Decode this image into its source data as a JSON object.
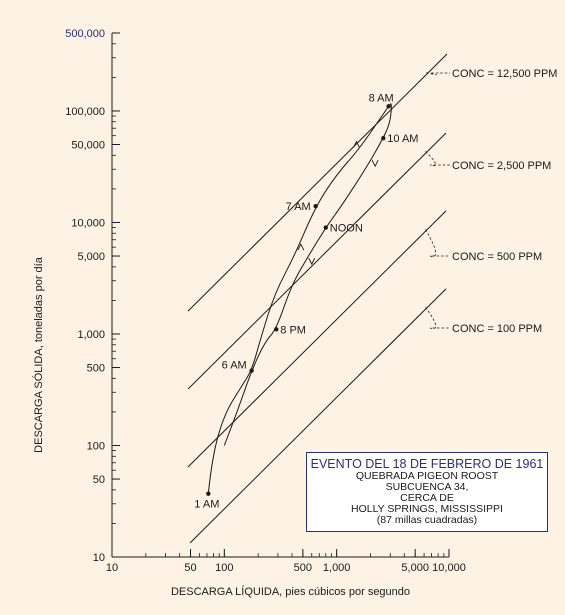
{
  "chart_data": {
    "type": "scatter",
    "xlabel": "DESCARGA LÍQUIDA, pies cúbicos por segundo",
    "ylabel": "DESCARGA SÓLIDA, toneladas por día",
    "xscale": "log",
    "yscale": "log",
    "xlim": [
      10,
      10000
    ],
    "ylim": [
      10,
      500000
    ],
    "xticks": [
      {
        "value": 10,
        "label": "10"
      },
      {
        "value": 50,
        "label": "50"
      },
      {
        "value": 100,
        "label": "100"
      },
      {
        "value": 500,
        "label": "500"
      },
      {
        "value": 1000,
        "label": "1,000"
      },
      {
        "value": 5000,
        "label": "5,000"
      },
      {
        "value": 10000,
        "label": "10,000"
      }
    ],
    "yticks": [
      {
        "value": 10,
        "label": "10"
      },
      {
        "value": 50,
        "label": "50"
      },
      {
        "value": 100,
        "label": "100"
      },
      {
        "value": 500,
        "label": "500"
      },
      {
        "value": 1000,
        "label": "1,000"
      },
      {
        "value": 5000,
        "label": "5,000"
      },
      {
        "value": 10000,
        "label": "10,000"
      },
      {
        "value": 50000,
        "label": "50,000"
      },
      {
        "value": 100000,
        "label": "100,000"
      },
      {
        "value": 500000,
        "label": "500,000"
      }
    ],
    "points": [
      {
        "label": "1 AM",
        "x": 72,
        "y": 37
      },
      {
        "label": "6 AM",
        "x": 175,
        "y": 470
      },
      {
        "label": "8 PM",
        "x": 290,
        "y": 1100
      },
      {
        "label": "7 AM",
        "x": 650,
        "y": 14000
      },
      {
        "label": "NOON",
        "x": 800,
        "y": 9000
      },
      {
        "label": "10 AM",
        "x": 2600,
        "y": 57000
      },
      {
        "label": "8 AM",
        "x": 2900,
        "y": 110000
      }
    ],
    "loop_path": [
      [
        72,
        37
      ],
      [
        78,
        80
      ],
      [
        100,
        190
      ],
      [
        140,
        330
      ],
      [
        175,
        470
      ],
      [
        210,
        900
      ],
      [
        280,
        2300
      ],
      [
        420,
        5000
      ],
      [
        650,
        14000
      ],
      [
        1000,
        27000
      ],
      [
        1600,
        46000
      ],
      [
        2900,
        110000
      ],
      [
        3100,
        120000
      ],
      [
        3000,
        80000
      ],
      [
        2600,
        57000
      ],
      [
        1800,
        30000
      ],
      [
        1100,
        14000
      ],
      [
        800,
        9000
      ],
      [
        560,
        5000
      ],
      [
        400,
        2800
      ],
      [
        290,
        1100
      ],
      [
        230,
        850
      ],
      [
        175,
        470
      ],
      [
        130,
        200
      ],
      [
        100,
        100
      ]
    ],
    "arrows": [
      {
        "x": 1500,
        "y": 50000,
        "dir": "up"
      },
      {
        "x": 480,
        "y": 6000,
        "dir": "up"
      },
      {
        "x": 2200,
        "y": 34000,
        "dir": "down"
      },
      {
        "x": 600,
        "y": 4500,
        "dir": "down"
      }
    ],
    "concentration_lines": [
      {
        "label": "CONC = 12,500 PPM",
        "coef": 33.75
      },
      {
        "label": "CONC = 2,500 PPM",
        "coef": 6.75
      },
      {
        "label": "CONC = 500 PPM",
        "coef": 1.35
      },
      {
        "label": "CONC = 100 PPM",
        "coef": 0.27
      }
    ],
    "grid": false
  },
  "infobox": {
    "title": "EVENTO DEL 18 DE FEBRERO DE 1961",
    "lines": [
      "QUEBRADA PIGEON ROOST",
      "SUBCUENCA 34,",
      "CERCA DE",
      "HOLLY SPRINGS, MISSISSIPPI",
      "(87 millas cuadradas)"
    ]
  },
  "colors": {
    "background": "#fcf3e4",
    "ink": "#1a1a1a",
    "accent": "#2a2f7a",
    "box_fill": "#ffffff"
  }
}
